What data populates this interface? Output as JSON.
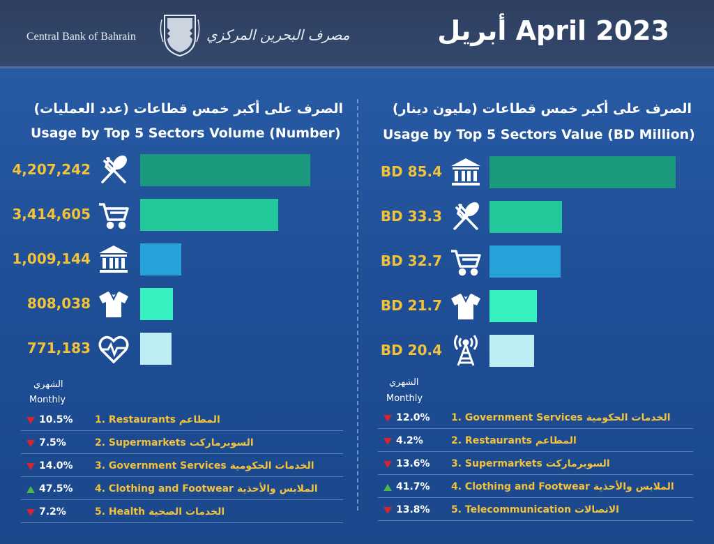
{
  "header": {
    "title": "أبريل April 2023",
    "bank_en": "Central Bank of Bahrain",
    "bank_ar": "مصرف البحرين المركزي"
  },
  "chart_data": [
    {
      "type": "bar",
      "title_ar": "الصرف على أكبر خمس قطاعات (عدد العمليات)",
      "title": "Usage by Top 5 Sectors Volume (Number)",
      "categories": [
        "Restaurants",
        "Supermarkets",
        "Government Services",
        "Clothing and Footwear",
        "Health"
      ],
      "values": [
        4207242,
        3414605,
        1009144,
        808038,
        771183
      ],
      "value_labels": [
        "4,207,242",
        "3,414,605",
        "1,009,144",
        "808,038",
        "771,183"
      ],
      "icons": [
        "restaurant-icon",
        "cart-icon",
        "government-icon",
        "shirt-icon",
        "health-icon"
      ],
      "colors": [
        "#1b9a7e",
        "#22c89a",
        "#27a2d8",
        "#36f0c0",
        "#bdeef3"
      ],
      "xlim": [
        0,
        4207242
      ],
      "monthly_label_ar": "الشهري",
      "monthly_label_en": "Monthly",
      "ranking": [
        {
          "change": "10.5%",
          "direction": "down",
          "label": "1. Restaurants المطاعم"
        },
        {
          "change": "7.5%",
          "direction": "down",
          "label": "2. Supermarkets السوبرماركت"
        },
        {
          "change": "14.0%",
          "direction": "down",
          "label": "3. Government Services الخدمات الحكومية"
        },
        {
          "change": "47.5%",
          "direction": "up",
          "label": "4. Clothing and Footwear الملابس والأحذية"
        },
        {
          "change": "7.2%",
          "direction": "down",
          "label": "5. Health الخدمات الصحية"
        }
      ]
    },
    {
      "type": "bar",
      "title_ar": "الصرف على أكبر خمس قطاعات (مليون دينار)",
      "title": "Usage by Top 5 Sectors Value (BD Million)",
      "categories": [
        "Government Services",
        "Restaurants",
        "Supermarkets",
        "Clothing and Footwear",
        "Telecommunication"
      ],
      "values": [
        85.4,
        33.3,
        32.7,
        21.7,
        20.4
      ],
      "value_labels": [
        "BD 85.4",
        "BD 33.3",
        "BD 32.7",
        "BD 21.7",
        "BD 20.4"
      ],
      "icons": [
        "government-icon",
        "restaurant-icon",
        "cart-icon",
        "shirt-icon",
        "telecom-icon"
      ],
      "colors": [
        "#1b9a7e",
        "#22c89a",
        "#27a2d8",
        "#36f0c0",
        "#bdeef3"
      ],
      "xlim": [
        0,
        85.4
      ],
      "monthly_label_ar": "الشهري",
      "monthly_label_en": "Monthly",
      "ranking": [
        {
          "change": "12.0%",
          "direction": "down",
          "label": "1. Government Services الخدمات الحكومية"
        },
        {
          "change": "4.2%",
          "direction": "down",
          "label": "2. Restaurants المطاعم"
        },
        {
          "change": "13.6%",
          "direction": "down",
          "label": "3. Supermarkets السوبرماركت"
        },
        {
          "change": "41.7%",
          "direction": "up",
          "label": "4. Clothing and Footwear الملابس والأحذية"
        },
        {
          "change": "13.8%",
          "direction": "down",
          "label": "5. Telecommunication الاتصالات"
        }
      ]
    }
  ]
}
